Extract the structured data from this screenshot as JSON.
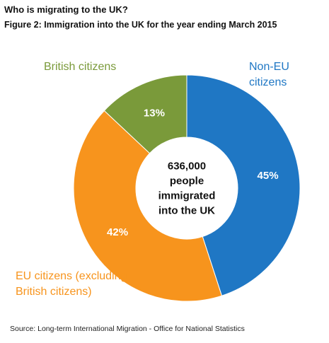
{
  "header": {
    "title": "Who is migrating to the UK?",
    "subtitle": "Figure 2: Immigration into the UK for the year ending March 2015"
  },
  "chart_data": {
    "type": "pie",
    "variant": "donut",
    "center_label": [
      "636,000",
      "people",
      "immigrated",
      "into the UK"
    ],
    "slices": [
      {
        "name": "Non-EU citizens",
        "value": 45,
        "label": "45%",
        "color": "#1f77c4"
      },
      {
        "name": "EU citizens (excluding British citizens)",
        "value": 42,
        "label": "42%",
        "color": "#f7941d"
      },
      {
        "name": "British citizens",
        "value": 13,
        "label": "13%",
        "color": "#7a9a3a"
      }
    ],
    "legend": {
      "british_text": "British citizens",
      "noneu_text": "Non-EU citizens",
      "eu_text_line1": "EU citizens (excluding",
      "eu_text_line2": "British citizens)"
    }
  },
  "source": "Source: Long-term International Migration - Office for National Statistics"
}
